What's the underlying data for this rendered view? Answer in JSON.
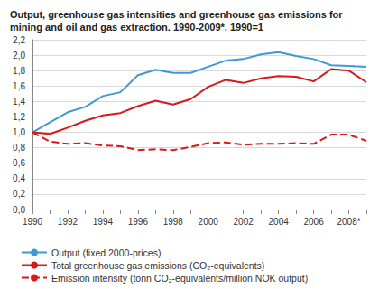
{
  "chart_data": {
    "type": "line",
    "title": "Output, greenhouse gas intensities and greenhouse gas emissions for mining and oil and gas extraction. 1990-2009*. 1990=1",
    "categories": [
      "1990",
      null,
      "1992",
      null,
      "1994",
      null,
      "1996",
      null,
      "1998",
      null,
      "2000",
      null,
      "2002",
      null,
      "2004",
      null,
      "2006",
      null,
      "2008*",
      null
    ],
    "series": [
      {
        "name": "Output (fixed 2000-prices)",
        "color": "#3d9ad6",
        "line_style": "solid",
        "values": [
          1.0,
          1.13,
          1.26,
          1.33,
          1.47,
          1.52,
          1.74,
          1.81,
          1.77,
          1.77,
          1.85,
          1.93,
          1.95,
          2.01,
          2.04,
          1.99,
          1.95,
          1.87,
          1.86,
          1.85
        ]
      },
      {
        "name": "Total greenhouse gas emissions (CO₂-equivalents)",
        "color": "#d7191c",
        "line_style": "solid",
        "values": [
          1.0,
          0.98,
          1.06,
          1.15,
          1.22,
          1.25,
          1.34,
          1.41,
          1.36,
          1.43,
          1.59,
          1.68,
          1.64,
          1.7,
          1.73,
          1.72,
          1.66,
          1.82,
          1.8,
          1.65
        ]
      },
      {
        "name": "Emission intensity (tonn CO₂-equivalents/million NOK output)",
        "color": "#d7191c",
        "line_style": "dashed",
        "values": [
          1.0,
          0.88,
          0.85,
          0.86,
          0.83,
          0.82,
          0.77,
          0.78,
          0.77,
          0.81,
          0.86,
          0.87,
          0.84,
          0.85,
          0.85,
          0.86,
          0.85,
          0.97,
          0.97,
          0.89
        ]
      }
    ],
    "ylim": [
      0,
      2.2
    ],
    "yticks": [
      {
        "value": 0,
        "label": "0,0"
      },
      {
        "value": 0.2,
        "label": "0,2"
      },
      {
        "value": 0.4,
        "label": "0,4"
      },
      {
        "value": 0.6,
        "label": "0,6"
      },
      {
        "value": 0.8,
        "label": "0,8"
      },
      {
        "value": 1.0,
        "label": "1,0"
      },
      {
        "value": 1.2,
        "label": "1,2"
      },
      {
        "value": 1.4,
        "label": "1,4"
      },
      {
        "value": 1.6,
        "label": "1,6"
      },
      {
        "value": 1.8,
        "label": "1,8"
      },
      {
        "value": 2.0,
        "label": "2,0"
      },
      {
        "value": 2.2,
        "label": "2,2"
      }
    ],
    "grid": true,
    "legend": "bottom"
  }
}
